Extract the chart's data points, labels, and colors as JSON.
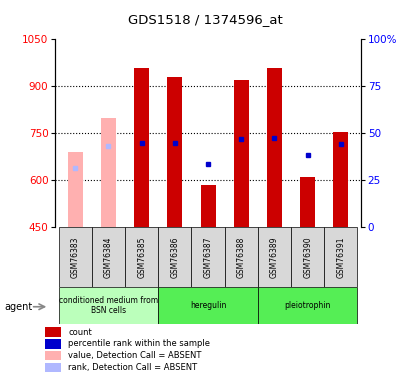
{
  "title": "GDS1518 / 1374596_at",
  "samples": [
    "GSM76383",
    "GSM76384",
    "GSM76385",
    "GSM76386",
    "GSM76387",
    "GSM76388",
    "GSM76389",
    "GSM76390",
    "GSM76391"
  ],
  "bar_values": [
    690,
    800,
    960,
    930,
    585,
    920,
    960,
    610,
    755
  ],
  "bar_colors": [
    "#ffb0b0",
    "#ffb0b0",
    "#cc0000",
    "#cc0000",
    "#cc0000",
    "#cc0000",
    "#cc0000",
    "#cc0000",
    "#cc0000"
  ],
  "rank_values": [
    640,
    710,
    720,
    720,
    650,
    730,
    735,
    680,
    715
  ],
  "rank_colors": [
    "#b0b8ff",
    "#b0b8ff",
    "#0000cc",
    "#0000cc",
    "#0000cc",
    "#0000cc",
    "#0000cc",
    "#0000cc",
    "#0000cc"
  ],
  "rank_is_absent": [
    true,
    true,
    false,
    false,
    false,
    false,
    false,
    false,
    false
  ],
  "ymin": 450,
  "ymax": 1050,
  "yticks_left": [
    450,
    600,
    750,
    900,
    1050
  ],
  "yticks_right_vals": [
    0,
    25,
    50,
    75,
    100
  ],
  "yticks_right_pos": [
    450,
    600,
    750,
    900,
    1050
  ],
  "grid_lines": [
    600,
    750,
    900
  ],
  "groups": [
    {
      "label": "conditioned medium from\nBSN cells",
      "start": 0,
      "end": 2,
      "color": "#bbffbb"
    },
    {
      "label": "heregulin",
      "start": 3,
      "end": 5,
      "color": "#55ee55"
    },
    {
      "label": "pleiotrophin",
      "start": 6,
      "end": 8,
      "color": "#55ee55"
    }
  ],
  "bar_width": 0.45,
  "legend_items": [
    {
      "label": "count",
      "color": "#cc0000"
    },
    {
      "label": "percentile rank within the sample",
      "color": "#0000cc"
    },
    {
      "label": "value, Detection Call = ABSENT",
      "color": "#ffb0b0"
    },
    {
      "label": "rank, Detection Call = ABSENT",
      "color": "#b0b8ff"
    }
  ]
}
